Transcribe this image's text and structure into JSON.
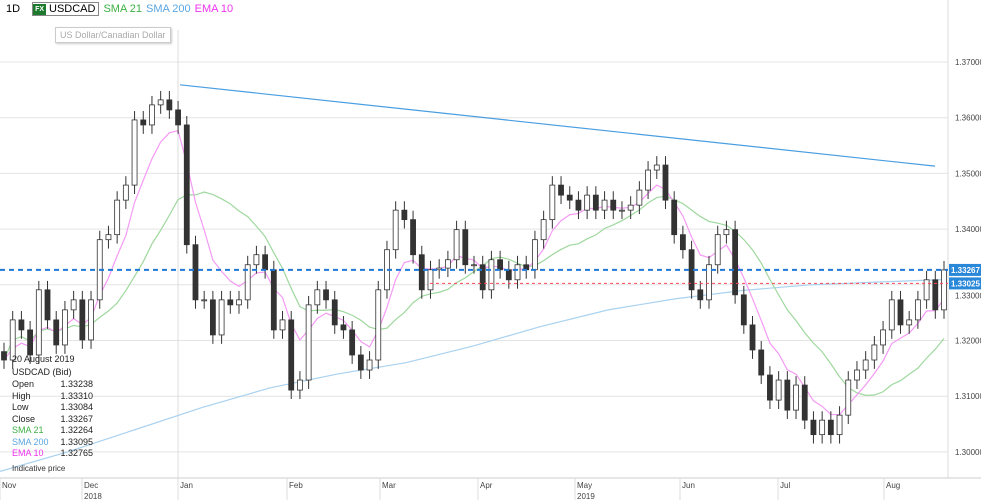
{
  "header": {
    "timeframe": "1D",
    "badge": "FX",
    "symbol": "USDCAD",
    "ind1": "SMA 21",
    "ind2": "SMA 200",
    "ind3": "EMA 10",
    "tooltip": "US Dollar/Canadian Dollar"
  },
  "info": {
    "date": "20 August 2019",
    "title": "USDCAD (Bid)",
    "rows": [
      {
        "k": "Open",
        "v": "1.33238"
      },
      {
        "k": "High",
        "v": "1.33310"
      },
      {
        "k": "Low",
        "v": "1.33084"
      },
      {
        "k": "Close",
        "v": "1.33267"
      },
      {
        "k": "SMA 21",
        "v": "1.32264"
      },
      {
        "k": "SMA 200",
        "v": "1.33095"
      },
      {
        "k": "EMA 10",
        "v": "1.32765"
      }
    ],
    "note": "Indicative price"
  },
  "colors": {
    "sma21": "#3cb043",
    "sma200": "#5aa6e0",
    "ema10": "#ee33ee",
    "bull": "#ffffff",
    "bear": "#333333",
    "trend": "#4a9ee0",
    "price_line": "#1e7ad6",
    "ref_line": "#ff4455",
    "fx": "#1e7a2e"
  },
  "chart_data": {
    "type": "candlestick",
    "ylim": [
      1.2955,
      1.3715
    ],
    "yticks": [
      "1.37000",
      "1.36000",
      "1.35000",
      "1.34000",
      "1.33000",
      "1.32000",
      "1.31000",
      "1.30000"
    ],
    "xticks": [
      {
        "label": "Nov",
        "sub": ""
      },
      {
        "label": "Dec",
        "sub": "2018"
      },
      {
        "label": "Jan",
        "sub": ""
      },
      {
        "label": "Feb",
        "sub": ""
      },
      {
        "label": "Mar",
        "sub": ""
      },
      {
        "label": "Apr",
        "sub": ""
      },
      {
        "label": "May",
        "sub": "2019"
      },
      {
        "label": "Jun",
        "sub": ""
      },
      {
        "label": "Jul",
        "sub": ""
      },
      {
        "label": "Aug",
        "sub": ""
      }
    ],
    "closes": [
      1.3165,
      1.3237,
      1.3219,
      1.3174,
      1.3291,
      1.3237,
      1.3192,
      1.3255,
      1.3273,
      1.3201,
      1.3273,
      1.3381,
      1.339,
      1.3452,
      1.3479,
      1.3596,
      1.3587,
      1.3623,
      1.3632,
      1.3614,
      1.3587,
      1.3372,
      1.3273,
      1.3273,
      1.321,
      1.3273,
      1.3264,
      1.3273,
      1.3336,
      1.3354,
      1.3327,
      1.3219,
      1.3237,
      1.3111,
      1.3129,
      1.3264,
      1.3291,
      1.3273,
      1.3228,
      1.3219,
      1.3174,
      1.3147,
      1.3165,
      1.3291,
      1.3363,
      1.3434,
      1.3417,
      1.3354,
      1.3291,
      1.3327,
      1.333,
      1.3345,
      1.3399,
      1.3336,
      1.3336,
      1.3291,
      1.3345,
      1.3327,
      1.3309,
      1.3336,
      1.3327,
      1.3381,
      1.3417,
      1.3479,
      1.3461,
      1.3452,
      1.3434,
      1.3461,
      1.3434,
      1.3452,
      1.3434,
      1.3434,
      1.3443,
      1.347,
      1.3506,
      1.3515,
      1.3452,
      1.339,
      1.3363,
      1.3291,
      1.3273,
      1.3336,
      1.339,
      1.3399,
      1.3282,
      1.3228,
      1.3183,
      1.3138,
      1.3093,
      1.3129,
      1.3075,
      1.312,
      1.3057,
      1.3031,
      1.3057,
      1.3031,
      1.3066,
      1.3129,
      1.3147,
      1.3165,
      1.3192,
      1.3219,
      1.3273,
      1.3228,
      1.3237,
      1.3273,
      1.3309,
      1.3255,
      1.33267
    ],
    "sma200": [
      1.2965,
      1.3,
      1.304,
      1.308,
      1.3115,
      1.314,
      1.316,
      1.319,
      1.3225,
      1.3255,
      1.3275,
      1.329,
      1.33,
      1.3305,
      1.33095
    ],
    "trendline": {
      "from": 1.3659,
      "to": 1.3513
    },
    "price_line": {
      "value": 1.33267,
      "label": "1.33267"
    },
    "ref_line": {
      "value": 1.33025,
      "label": "1.33025"
    }
  }
}
